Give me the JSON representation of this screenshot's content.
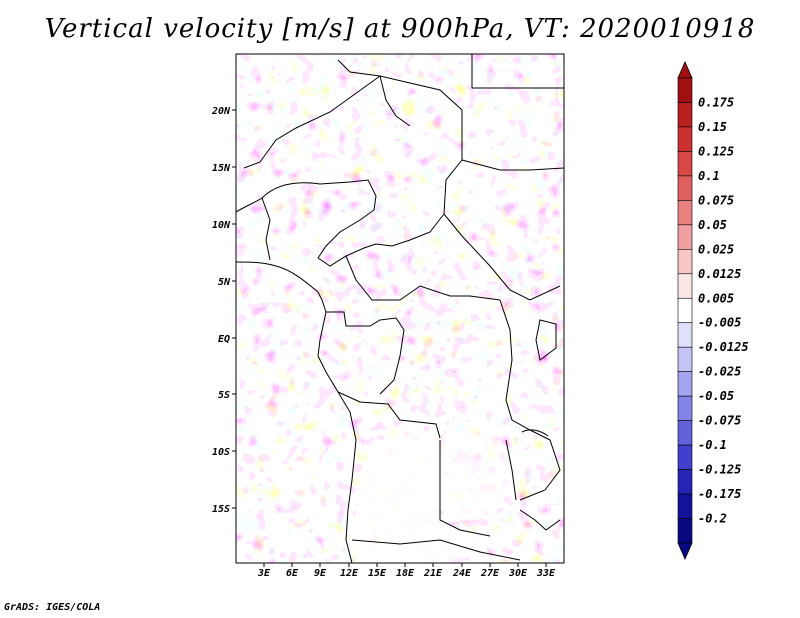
{
  "title": "Vertical velocity [m/s] at 900hPa, VT: 2020010918",
  "footer": "GrADS: IGES/COLA",
  "map": {
    "region": "Central Africa",
    "lon_labels": [
      "3E",
      "6E",
      "9E",
      "12E",
      "15E",
      "18E",
      "21E",
      "24E",
      "27E",
      "30E",
      "33E"
    ],
    "lat_labels": [
      "20N",
      "15N",
      "10N",
      "5N",
      "EQ",
      "5S",
      "10S",
      "15S"
    ]
  },
  "colorbar": {
    "labels": [
      "0.175",
      "0.15",
      "0.125",
      "0.1",
      "0.075",
      "0.05",
      "0.025",
      "0.0125",
      "0.005",
      "-0.005",
      "-0.0125",
      "-0.025",
      "-0.05",
      "-0.075",
      "-0.1",
      "-0.125",
      "-0.175",
      "-0.2"
    ],
    "colors": [
      "#a01010",
      "#b82020",
      "#cc3030",
      "#d84848",
      "#e06060",
      "#e88080",
      "#f0a0a0",
      "#f8c8c8",
      "#fde6e6",
      "#ffffff",
      "#e0e0fb",
      "#c4c4f6",
      "#a4a4ef",
      "#8484e6",
      "#6262da",
      "#4040cc",
      "#2424b6",
      "#12129a",
      "#080880"
    ],
    "arrow_top_color": "#a01010",
    "arrow_bottom_color": "#080880"
  }
}
